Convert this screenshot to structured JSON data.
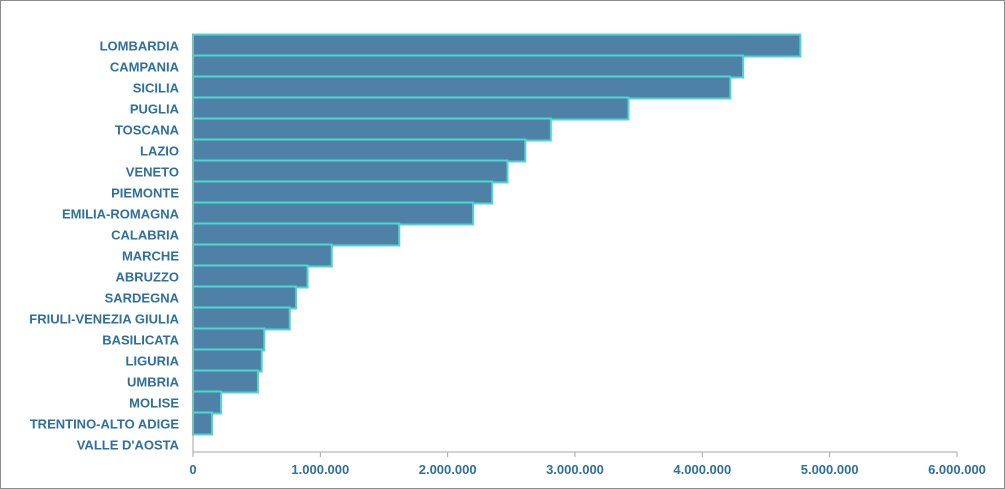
{
  "chart_data": {
    "type": "bar",
    "orientation": "horizontal",
    "categories": [
      "LOMBARDIA",
      "CAMPANIA",
      "SICILIA",
      "PUGLIA",
      "TOSCANA",
      "LAZIO",
      "VENETO",
      "PIEMONTE",
      "EMILIA-ROMAGNA",
      "CALABRIA",
      "MARCHE",
      "ABRUZZO",
      "SARDEGNA",
      "FRIULI-VENEZIA GIULIA",
      "BASILICATA",
      "LIGURIA",
      "UMBRIA",
      "MOLISE",
      "TRENTINO-ALTO ADIGE",
      "VALLE D'AOSTA"
    ],
    "values": [
      4770000,
      4320000,
      4220000,
      3420000,
      2810000,
      2610000,
      2470000,
      2350000,
      2200000,
      1620000,
      1090000,
      900000,
      810000,
      760000,
      560000,
      540000,
      510000,
      220000,
      150000,
      0
    ],
    "xlim": [
      0,
      6000000
    ],
    "xticks": [
      "0",
      "1.000.000",
      "2.000.000",
      "3.000.000",
      "4.000.000",
      "5.000.000",
      "6.000.000"
    ],
    "tick_values": [
      0,
      1000000,
      2000000,
      3000000,
      4000000,
      5000000,
      6000000
    ],
    "grid": false,
    "legend": "none",
    "title": "",
    "xlabel": "",
    "ylabel": ""
  },
  "colors": {
    "bar_fill": "#4f81a7",
    "bar_edge": "#4cd6d0",
    "label_text": "#2e6f9e",
    "axis": "#a6a6a6",
    "frame": "#8c8c8c"
  }
}
